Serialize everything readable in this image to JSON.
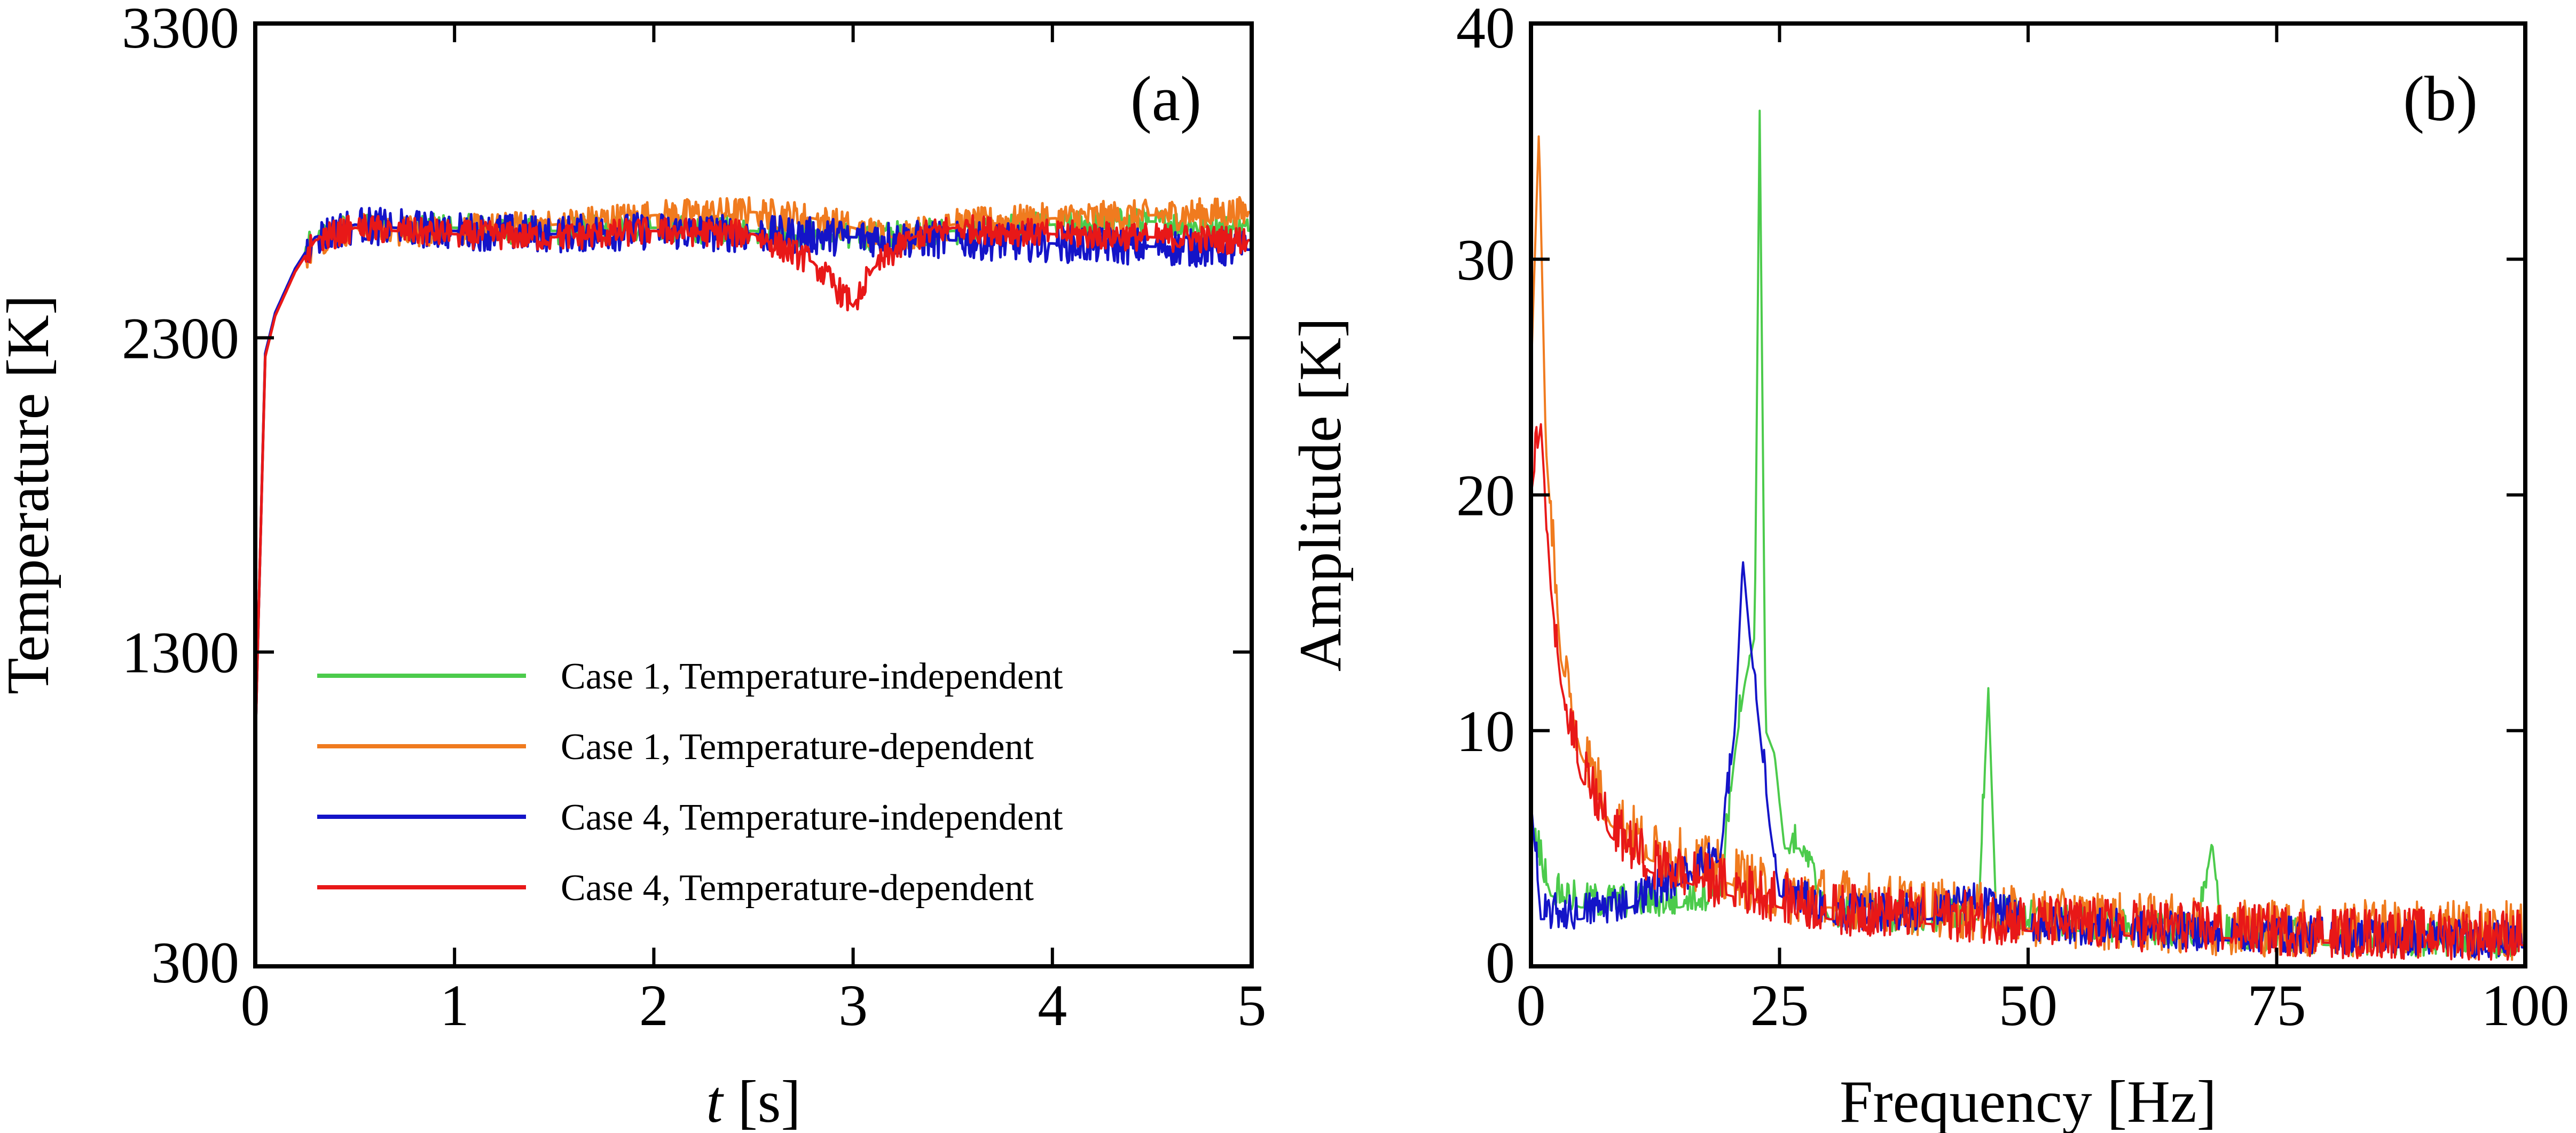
{
  "chart_data": [
    {
      "type": "line",
      "panel_label": "(a)",
      "xlabel_italic": "t",
      "xlabel_unit": " [s]",
      "ylabel": "Temperature [K]",
      "xlim": [
        0,
        5
      ],
      "ylim": [
        300,
        3300
      ],
      "xticks": [
        "0",
        "1",
        "2",
        "3",
        "4",
        "5"
      ],
      "yticks": [
        "300",
        "1300",
        "2300",
        "3300"
      ],
      "legend_position": "lower-right",
      "series": [
        {
          "name": "Case 1, Temperature-independent",
          "color": "#4ccb4c",
          "points": [
            [
              0,
              1000
            ],
            [
              0.02,
              1500
            ],
            [
              0.05,
              2250
            ],
            [
              0.1,
              2380
            ],
            [
              0.2,
              2520
            ],
            [
              0.3,
              2620
            ],
            [
              0.5,
              2660
            ],
            [
              0.7,
              2650
            ],
            [
              1.0,
              2650
            ],
            [
              1.5,
              2640
            ],
            [
              2.0,
              2650
            ],
            [
              2.5,
              2640
            ],
            [
              3.0,
              2620
            ],
            [
              3.5,
              2640
            ],
            [
              4.0,
              2660
            ],
            [
              4.5,
              2670
            ],
            [
              5.0,
              2640
            ]
          ],
          "noise": 45
        },
        {
          "name": "Case 1, Temperature-dependent",
          "color": "#f07b1f",
          "points": [
            [
              0,
              1000
            ],
            [
              0.02,
              1500
            ],
            [
              0.05,
              2240
            ],
            [
              0.1,
              2370
            ],
            [
              0.2,
              2510
            ],
            [
              0.3,
              2610
            ],
            [
              0.5,
              2650
            ],
            [
              0.7,
              2640
            ],
            [
              1.0,
              2640
            ],
            [
              1.5,
              2660
            ],
            [
              2.0,
              2690
            ],
            [
              2.5,
              2700
            ],
            [
              2.8,
              2680
            ],
            [
              3.0,
              2650
            ],
            [
              3.2,
              2620
            ],
            [
              3.5,
              2660
            ],
            [
              4.0,
              2680
            ],
            [
              4.5,
              2690
            ],
            [
              5.0,
              2700
            ]
          ],
          "noise": 50
        },
        {
          "name": "Case 4, Temperature-independent",
          "color": "#1414c8",
          "points": [
            [
              0,
              1000
            ],
            [
              0.02,
              1500
            ],
            [
              0.05,
              2250
            ],
            [
              0.1,
              2380
            ],
            [
              0.2,
              2520
            ],
            [
              0.3,
              2620
            ],
            [
              0.5,
              2660
            ],
            [
              0.7,
              2650
            ],
            [
              1.0,
              2640
            ],
            [
              1.5,
              2630
            ],
            [
              2.0,
              2640
            ],
            [
              2.5,
              2630
            ],
            [
              3.0,
              2620
            ],
            [
              3.5,
              2610
            ],
            [
              4.0,
              2600
            ],
            [
              4.5,
              2590
            ],
            [
              5.0,
              2580
            ]
          ],
          "noise": 60
        },
        {
          "name": "Case 4, Temperature-dependent",
          "color": "#e81818",
          "points": [
            [
              0,
              1000
            ],
            [
              0.02,
              1500
            ],
            [
              0.05,
              2240
            ],
            [
              0.1,
              2370
            ],
            [
              0.2,
              2510
            ],
            [
              0.3,
              2610
            ],
            [
              0.5,
              2650
            ],
            [
              0.7,
              2640
            ],
            [
              1.0,
              2630
            ],
            [
              1.5,
              2620
            ],
            [
              2.0,
              2640
            ],
            [
              2.5,
              2630
            ],
            [
              2.8,
              2540
            ],
            [
              3.0,
              2400
            ],
            [
              3.1,
              2520
            ],
            [
              3.3,
              2620
            ],
            [
              3.5,
              2650
            ],
            [
              4.0,
              2630
            ],
            [
              4.5,
              2620
            ],
            [
              5.0,
              2610
            ]
          ],
          "noise": 45
        }
      ]
    },
    {
      "type": "line",
      "panel_label": "(b)",
      "xlabel": "Frequency [Hz]",
      "ylabel": "Amplitude [K]",
      "xlim": [
        0,
        100
      ],
      "ylim": [
        0,
        40
      ],
      "xticks": [
        "0",
        "25",
        "50",
        "75",
        "100"
      ],
      "yticks": [
        "0",
        "10",
        "20",
        "30",
        "40"
      ],
      "series": [
        {
          "name": "Case 1, Temperature-independent",
          "color": "#4ccb4c",
          "points": [
            [
              0,
              6
            ],
            [
              2,
              3
            ],
            [
              5,
              2.5
            ],
            [
              10,
              2.5
            ],
            [
              15,
              2.5
            ],
            [
              19,
              3
            ],
            [
              20.5,
              9
            ],
            [
              21.5,
              12
            ],
            [
              22.5,
              14
            ],
            [
              23,
              36.3
            ],
            [
              23.6,
              10
            ],
            [
              24.5,
              9
            ],
            [
              25.5,
              5
            ],
            [
              27,
              5
            ],
            [
              30,
              2
            ],
            [
              40,
              1.8
            ],
            [
              45,
              2
            ],
            [
              46,
              11.8
            ],
            [
              46.8,
              2
            ],
            [
              55,
              1.5
            ],
            [
              67,
              1.2
            ],
            [
              68.5,
              5.3
            ],
            [
              69.5,
              1.2
            ],
            [
              80,
              0.9
            ],
            [
              100,
              0.8
            ]
          ],
          "noise": 1.5
        },
        {
          "name": "Case 1, Temperature-dependent",
          "color": "#f07b1f",
          "points": [
            [
              0,
              25
            ],
            [
              0.8,
              35.5
            ],
            [
              1.5,
              22
            ],
            [
              3,
              13
            ],
            [
              5,
              9
            ],
            [
              8,
              6
            ],
            [
              12,
              4.5
            ],
            [
              16,
              4
            ],
            [
              20,
              3.5
            ],
            [
              25,
              2.5
            ],
            [
              30,
              2.5
            ],
            [
              35,
              2.2
            ],
            [
              40,
              2
            ],
            [
              50,
              1.6
            ],
            [
              60,
              1.4
            ],
            [
              70,
              1.2
            ],
            [
              80,
              1.1
            ],
            [
              90,
              1.1
            ],
            [
              100,
              1
            ]
          ],
          "noise": 2.5
        },
        {
          "name": "Case 4, Temperature-independent",
          "color": "#1414c8",
          "points": [
            [
              0,
              7
            ],
            [
              1,
              2
            ],
            [
              5,
              2
            ],
            [
              10,
              2.5
            ],
            [
              15,
              3.5
            ],
            [
              19,
              4.5
            ],
            [
              20.5,
              10
            ],
            [
              21.3,
              17.3
            ],
            [
              22,
              14
            ],
            [
              23,
              10
            ],
            [
              24,
              6
            ],
            [
              25,
              3
            ],
            [
              30,
              2
            ],
            [
              40,
              2
            ],
            [
              45,
              2.5
            ],
            [
              50,
              1.5
            ],
            [
              60,
              1.3
            ],
            [
              70,
              1.1
            ],
            [
              80,
              1
            ],
            [
              100,
              0.8
            ]
          ],
          "noise": 1.6
        },
        {
          "name": "Case 4, Temperature-dependent",
          "color": "#e81818",
          "points": [
            [
              0,
              20
            ],
            [
              1,
              23
            ],
            [
              2,
              16
            ],
            [
              3,
              12
            ],
            [
              5,
              8
            ],
            [
              8,
              5.5
            ],
            [
              12,
              4
            ],
            [
              16,
              3.5
            ],
            [
              20,
              3
            ],
            [
              25,
              2.5
            ],
            [
              30,
              2
            ],
            [
              40,
              1.8
            ],
            [
              50,
              1.5
            ],
            [
              60,
              1.3
            ],
            [
              70,
              1.2
            ],
            [
              80,
              1
            ],
            [
              100,
              0.9
            ]
          ],
          "noise": 2.2
        }
      ]
    }
  ]
}
